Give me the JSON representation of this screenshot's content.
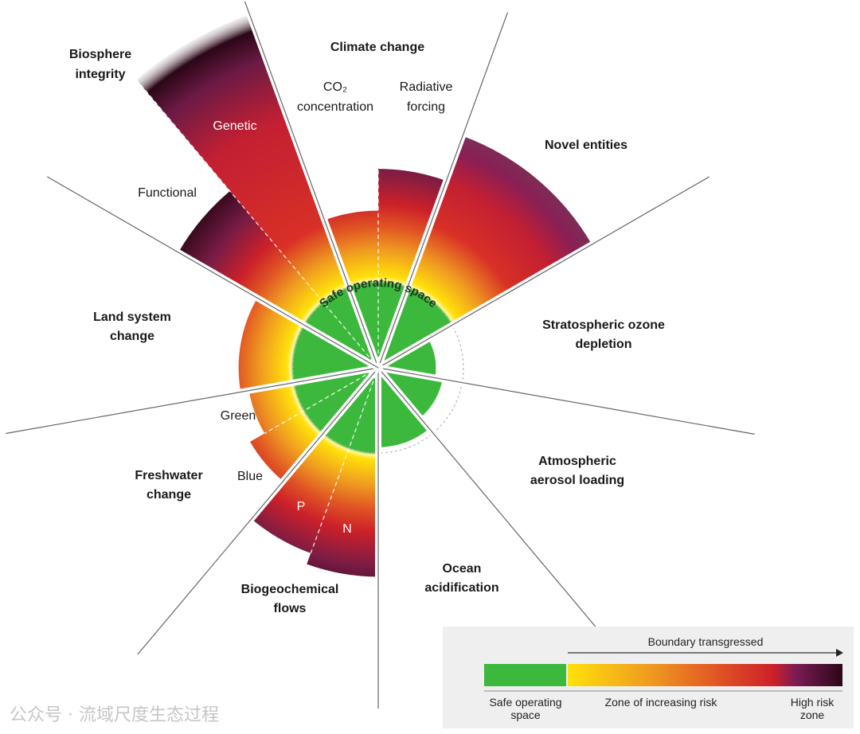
{
  "diagram": {
    "safe_label": "Safe operating space",
    "colors": {
      "safe": "#3cb93c",
      "yellow": "#ffe10a",
      "orange": "#ef9a20",
      "red": "#cc2029",
      "purple": "#6b1a45",
      "dark": "#2b0716",
      "line": "#666666"
    },
    "boundaries": [
      {
        "name": "Climate change",
        "subs": [
          {
            "label": "CO₂ concentration",
            "level": 1.88
          },
          {
            "label": "Radiative forcing",
            "level": 2.38
          }
        ]
      },
      {
        "name": "Novel entities",
        "subs": [
          {
            "label": "",
            "level": 2.95,
            "fade": true
          }
        ]
      },
      {
        "name": "Stratospheric ozone depletion",
        "subs": [
          {
            "label": "",
            "level": 0.69
          }
        ]
      },
      {
        "name": "Atmospheric aerosol loading",
        "subs": [
          {
            "label": "",
            "level": 0.78
          }
        ]
      },
      {
        "name": "Ocean acidification",
        "subs": [
          {
            "label": "",
            "level": 0.95
          }
        ]
      },
      {
        "name": "Biogeochemical flows",
        "subs": [
          {
            "label": "N",
            "level": 2.5
          },
          {
            "label": "P",
            "level": 2.36
          }
        ]
      },
      {
        "name": "Freshwater change",
        "subs": [
          {
            "label": "Blue",
            "level": 1.77
          },
          {
            "label": "Green",
            "level": 1.57
          }
        ]
      },
      {
        "name": "Land system change",
        "subs": [
          {
            "label": "",
            "level": 1.67
          }
        ]
      },
      {
        "name": "Biosphere integrity",
        "subs": [
          {
            "label": "Functional",
            "level": 2.76
          },
          {
            "label": "Genetic",
            "level": 4.5,
            "fade": true
          }
        ]
      }
    ],
    "labels": {
      "climate": "Climate change",
      "co2_1": "CO₂",
      "co2_2": "concentration",
      "rf_1": "Radiative",
      "rf_2": "forcing",
      "novel": "Novel entities",
      "ozone_1": "Stratospheric ozone",
      "ozone_2": "depletion",
      "aerosol_1": "Atmospheric",
      "aerosol_2": "aerosol loading",
      "ocean_1": "Ocean",
      "ocean_2": "acidification",
      "bgc_1": "Biogeochemical",
      "bgc_2": "flows",
      "fresh_1": "Freshwater",
      "fresh_2": "change",
      "land_1": "Land system",
      "land_2": "change",
      "bio_1": "Biosphere",
      "bio_2": "integrity",
      "functional": "Functional",
      "genetic": "Genetic",
      "green": "Green",
      "blue": "Blue",
      "p": "P",
      "n": "N"
    }
  },
  "legend": {
    "arrow_label": "Boundary transgressed",
    "safe_1": "Safe operating",
    "safe_2": "space",
    "zone": "Zone of increasing risk",
    "high_1": "High risk",
    "high_2": "zone"
  },
  "watermark": "公众号 · 流域尺度生态过程"
}
